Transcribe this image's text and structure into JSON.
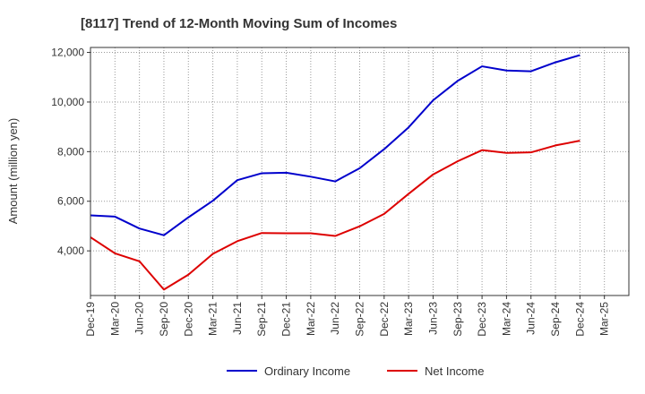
{
  "chart_data": {
    "type": "line",
    "title": "[8117]  Trend of 12-Month Moving Sum of Incomes",
    "xlabel": "",
    "ylabel": "Amount (million yen)",
    "ylim": [
      2200,
      12200
    ],
    "yticks": [
      4000,
      6000,
      8000,
      10000,
      12000
    ],
    "ytick_labels": [
      "4,000",
      "6,000",
      "8,000",
      "10,000",
      "12,000"
    ],
    "grid": true,
    "legend_position": "bottom",
    "categories": [
      "Dec-19",
      "Mar-20",
      "Jun-20",
      "Sep-20",
      "Dec-20",
      "Mar-21",
      "Jun-21",
      "Sep-21",
      "Dec-21",
      "Mar-22",
      "Jun-22",
      "Sep-22",
      "Dec-22",
      "Mar-23",
      "Jun-23",
      "Sep-23",
      "Dec-23",
      "Mar-24",
      "Jun-24",
      "Sep-24",
      "Dec-24",
      "Mar-25"
    ],
    "series": [
      {
        "name": "Ordinary Income",
        "color": "#0000cc",
        "values": [
          5430,
          5380,
          4900,
          4630,
          5350,
          6020,
          6850,
          7130,
          7150,
          6990,
          6800,
          7330,
          8100,
          8980,
          10070,
          10850,
          11440,
          11270,
          11240,
          11600,
          11890,
          null
        ]
      },
      {
        "name": "Net Income",
        "color": "#dd0000",
        "values": [
          4550,
          3900,
          3580,
          2440,
          3040,
          3880,
          4390,
          4720,
          4710,
          4710,
          4600,
          4990,
          5490,
          6300,
          7080,
          7610,
          8060,
          7950,
          7970,
          8250,
          8440,
          null
        ]
      }
    ]
  }
}
